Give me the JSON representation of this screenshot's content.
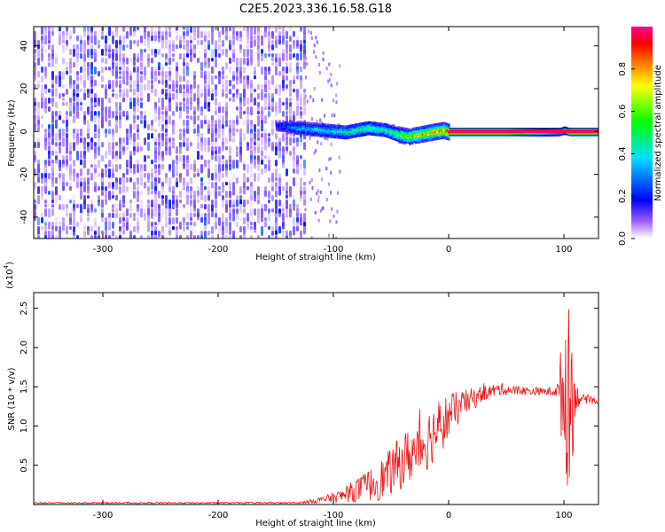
{
  "title": "C2E5.2023.336.16.58.G18",
  "chart_data": [
    {
      "type": "heatmap",
      "xlabel": "Height of straight line (km)",
      "ylabel": "Frequency (Hz)",
      "xlim": [
        -360,
        130
      ],
      "ylim": [
        -50,
        49
      ],
      "xticks": [
        -300,
        -200,
        -100,
        0,
        100
      ],
      "yticks": [
        -40,
        -20,
        0,
        20,
        40
      ],
      "colorbar": {
        "label": "Normalized spectral amplitude",
        "range": [
          0.0,
          1.0
        ],
        "ticks": [
          "0.0",
          "0.2",
          "0.4",
          "0.6",
          "0.8"
        ],
        "colors": [
          "#ffffff",
          "#6a00ff",
          "#0000ff",
          "#00e0ff",
          "#00ff00",
          "#ffff00",
          "#ff8000",
          "#ff0000",
          "#ff0090"
        ]
      },
      "noise_region": {
        "x": [
          -360,
          -125
        ],
        "amplitude": [
          0.05,
          0.45
        ]
      },
      "trace": {
        "x": [
          -150,
          -130,
          -110,
          -90,
          -70,
          -55,
          -45,
          -35,
          -25,
          -15,
          -5,
          0,
          50,
          95,
          100,
          105,
          130
        ],
        "y": [
          3,
          2,
          1,
          0,
          2,
          1,
          -1,
          -2,
          -1,
          0,
          1,
          0,
          0,
          0,
          1,
          0,
          0
        ],
        "amplitude": [
          0.2,
          0.35,
          0.4,
          0.45,
          0.5,
          0.45,
          0.6,
          0.7,
          0.75,
          0.8,
          0.85,
          0.95,
          0.95,
          0.4,
          0.5,
          0.95,
          0.95
        ]
      }
    },
    {
      "type": "line",
      "xlabel": "Height of straight line (km)",
      "ylabel": "SNR (10 * v/v)",
      "scale_label": "(x10",
      "scale_exponent": "4",
      "xlim": [
        -360,
        130
      ],
      "ylim": [
        0,
        2.7
      ],
      "xticks": [
        -300,
        -200,
        -100,
        0,
        100
      ],
      "yticks": [
        "0.5",
        "1.0",
        "1.5",
        "2.0",
        "2.5"
      ],
      "color": "#ee1111",
      "envelope": {
        "x": [
          -360,
          -130,
          -110,
          -95,
          -80,
          -60,
          -40,
          -20,
          -5,
          10,
          30,
          45,
          60,
          80,
          90,
          95,
          100,
          103,
          107,
          110,
          115,
          130
        ],
        "y": [
          0.02,
          0.02,
          0.06,
          0.1,
          0.18,
          0.3,
          0.55,
          0.8,
          1.05,
          1.25,
          1.42,
          1.47,
          1.45,
          1.44,
          1.44,
          1.46,
          1.45,
          1.4,
          1.42,
          1.38,
          1.35,
          1.32
        ],
        "noise": [
          0.01,
          0.01,
          0.04,
          0.08,
          0.15,
          0.25,
          0.35,
          0.4,
          0.35,
          0.2,
          0.1,
          0.08,
          0.06,
          0.05,
          0.06,
          0.1,
          1.1,
          1.2,
          1.0,
          0.2,
          0.06,
          0.04
        ]
      }
    }
  ]
}
